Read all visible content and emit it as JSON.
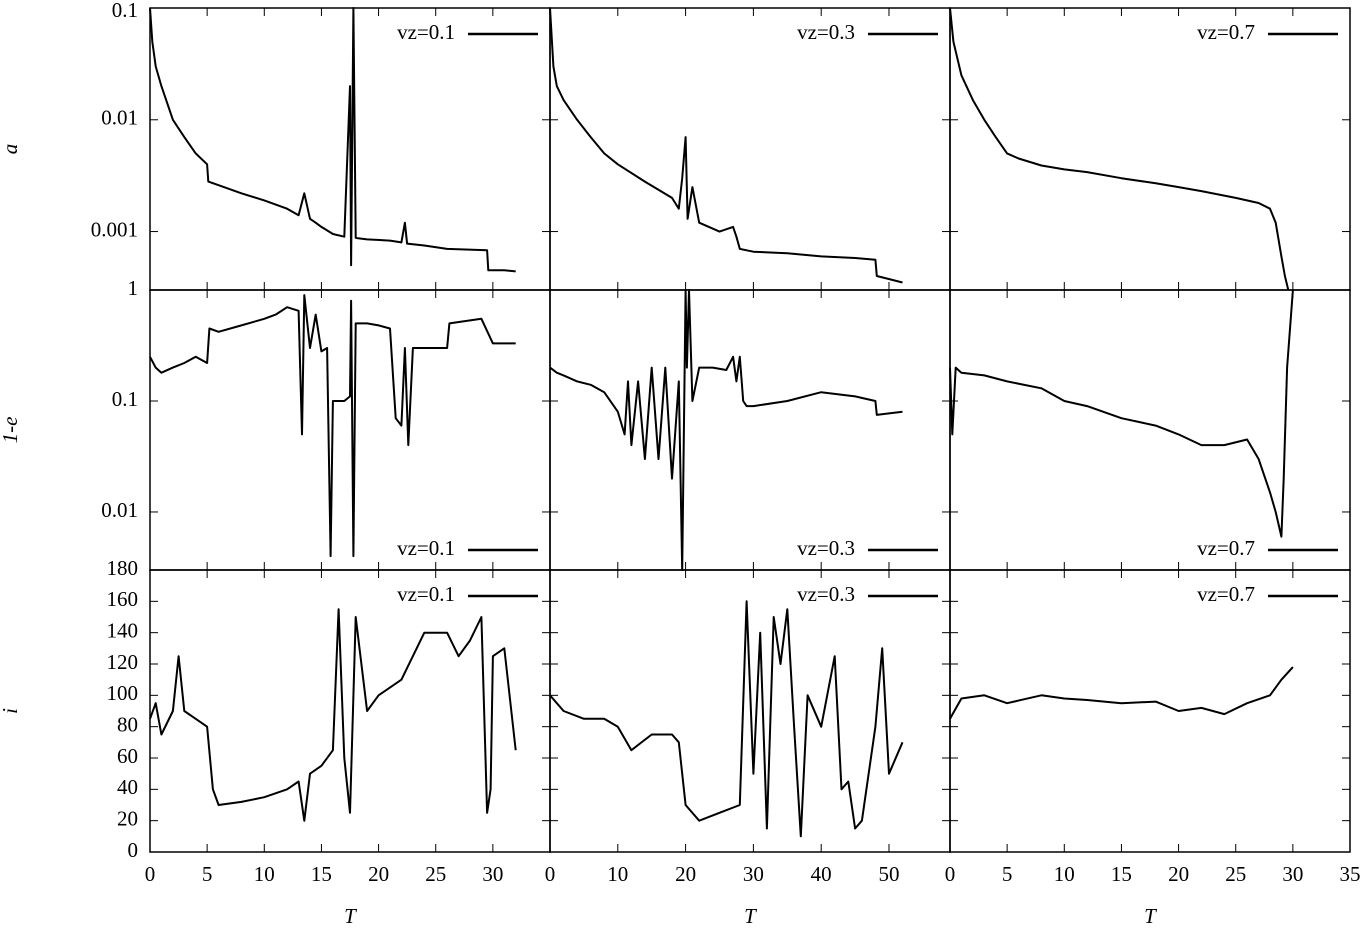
{
  "chart_data": [
    {
      "type": "line",
      "ylabel": "a",
      "log_y": true,
      "legend": "upper right",
      "xlim": [
        0,
        35
      ],
      "ylim": [
        0.0003,
        0.1
      ],
      "yticks": [
        0.001,
        0.01,
        0.1
      ],
      "x": [
        0,
        0.2,
        0.5,
        1,
        2,
        3,
        4,
        5,
        5.1,
        6,
        8,
        10,
        12,
        13,
        13.5,
        14,
        14.5,
        15,
        16,
        17,
        17.5,
        17.6,
        17.8,
        18,
        18.2,
        19,
        21,
        22,
        22.3,
        22.5,
        24,
        26,
        29.5,
        29.6,
        31,
        32
      ],
      "series": [
        {
          "name": "vz=0.1",
          "color": "#000000",
          "values": [
            0.1,
            0.05,
            0.03,
            0.02,
            0.01,
            0.007,
            0.005,
            0.004,
            0.0028,
            0.0026,
            0.0022,
            0.0019,
            0.0016,
            0.0014,
            0.0022,
            0.0013,
            0.0012,
            0.0011,
            0.00095,
            0.0009,
            0.02,
            0.0005,
            0.1,
            0.00088,
            0.00087,
            0.00085,
            0.00083,
            0.0008,
            0.0012,
            0.00078,
            0.00075,
            0.0007,
            0.00068,
            0.00045,
            0.00045,
            0.00044
          ]
        }
      ]
    },
    {
      "type": "line",
      "log_y": true,
      "legend": "upper right",
      "xlim": [
        0,
        59
      ],
      "ylim": [
        0.0003,
        0.1
      ],
      "x": [
        0,
        0.5,
        1,
        2,
        4,
        6,
        8,
        10,
        14,
        18,
        19,
        19.5,
        20,
        20.3,
        21,
        22,
        25,
        27,
        27.5,
        28,
        29,
        30,
        35,
        40,
        45,
        48,
        48.2,
        52
      ],
      "series": [
        {
          "name": "vz=0.3",
          "color": "#000000",
          "values": [
            0.1,
            0.03,
            0.02,
            0.015,
            0.01,
            0.007,
            0.005,
            0.004,
            0.0028,
            0.002,
            0.0016,
            0.003,
            0.007,
            0.0013,
            0.0025,
            0.0012,
            0.001,
            0.0011,
            0.0009,
            0.0007,
            0.00068,
            0.00066,
            0.00064,
            0.0006,
            0.00058,
            0.00056,
            0.0004,
            0.00035
          ]
        }
      ]
    },
    {
      "type": "line",
      "log_y": true,
      "legend": "upper right",
      "xlim": [
        0,
        35
      ],
      "ylim": [
        0.0003,
        0.1
      ],
      "x": [
        0,
        0.3,
        1,
        2,
        3,
        4,
        5,
        6,
        8,
        10,
        12,
        15,
        18,
        20,
        22,
        25,
        27,
        28,
        28.5,
        29,
        29.3,
        29.6
      ],
      "series": [
        {
          "name": "vz=0.7",
          "color": "#000000",
          "values": [
            0.1,
            0.05,
            0.025,
            0.015,
            0.01,
            0.007,
            0.005,
            0.0045,
            0.0039,
            0.0036,
            0.0034,
            0.003,
            0.0027,
            0.0025,
            0.0023,
            0.002,
            0.0018,
            0.0016,
            0.0012,
            0.0006,
            0.0004,
            0.0003
          ]
        }
      ]
    },
    {
      "type": "line",
      "ylabel": "1-e",
      "log_y": true,
      "legend": "lower right",
      "xlim": [
        0,
        35
      ],
      "ylim": [
        0.003,
        1
      ],
      "yticks": [
        0.01,
        0.1,
        1
      ],
      "x": [
        0,
        0.5,
        1,
        2,
        3,
        4,
        5,
        5.2,
        6,
        8,
        10,
        11,
        12,
        13,
        13.3,
        13.5,
        14,
        14.5,
        15,
        15.5,
        15.8,
        16,
        17,
        17.5,
        17.6,
        17.8,
        18,
        19,
        20,
        21,
        21.5,
        22,
        22.3,
        22.6,
        23,
        24,
        26,
        26.2,
        29,
        30,
        32
      ],
      "series": [
        {
          "name": "vz=0.1",
          "color": "#000000",
          "values": [
            0.25,
            0.2,
            0.18,
            0.2,
            0.22,
            0.25,
            0.22,
            0.45,
            0.42,
            0.48,
            0.55,
            0.6,
            0.7,
            0.65,
            0.05,
            0.9,
            0.3,
            0.6,
            0.28,
            0.3,
            0.004,
            0.1,
            0.1,
            0.11,
            0.8,
            0.004,
            0.5,
            0.5,
            0.48,
            0.45,
            0.07,
            0.06,
            0.3,
            0.04,
            0.3,
            0.3,
            0.3,
            0.5,
            0.55,
            0.33,
            0.33
          ]
        }
      ]
    },
    {
      "type": "line",
      "log_y": true,
      "legend": "lower right",
      "xlim": [
        0,
        59
      ],
      "ylim": [
        0.003,
        1
      ],
      "x": [
        0,
        1,
        2,
        4,
        6,
        8,
        10,
        11,
        11.5,
        12,
        13,
        14,
        15,
        16,
        17,
        18,
        19,
        19.5,
        20,
        20.2,
        20.5,
        21,
        22,
        24,
        26,
        27,
        27.5,
        28,
        28.5,
        29,
        30,
        35,
        40,
        45,
        48,
        48.2,
        52
      ],
      "series": [
        {
          "name": "vz=0.3",
          "color": "#000000",
          "values": [
            0.2,
            0.18,
            0.17,
            0.15,
            0.14,
            0.12,
            0.08,
            0.05,
            0.15,
            0.04,
            0.15,
            0.03,
            0.2,
            0.03,
            0.2,
            0.02,
            0.15,
            0.003,
            1,
            0.2,
            1,
            0.1,
            0.2,
            0.2,
            0.19,
            0.25,
            0.15,
            0.25,
            0.1,
            0.09,
            0.09,
            0.1,
            0.12,
            0.11,
            0.1,
            0.075,
            0.08
          ]
        }
      ]
    },
    {
      "type": "line",
      "log_y": true,
      "legend": "lower right",
      "xlim": [
        0,
        35
      ],
      "ylim": [
        0.003,
        1
      ],
      "x": [
        0,
        0.2,
        0.5,
        1,
        3,
        5,
        8,
        10,
        12,
        15,
        18,
        20,
        22,
        24,
        26,
        27,
        28,
        28.5,
        29,
        29.2,
        29.5,
        30
      ],
      "series": [
        {
          "name": "vz=0.7",
          "color": "#000000",
          "values": [
            0.2,
            0.05,
            0.2,
            0.18,
            0.17,
            0.15,
            0.13,
            0.1,
            0.09,
            0.07,
            0.06,
            0.05,
            0.04,
            0.04,
            0.045,
            0.03,
            0.015,
            0.01,
            0.006,
            0.02,
            0.2,
            1
          ]
        }
      ]
    },
    {
      "type": "line",
      "ylabel": "i",
      "xlabel": "T",
      "legend": "upper right",
      "xlim": [
        0,
        35
      ],
      "ylim": [
        0,
        180
      ],
      "yticks": [
        0,
        20,
        40,
        60,
        80,
        100,
        120,
        140,
        160,
        180
      ],
      "xticks": [
        0,
        5,
        10,
        15,
        20,
        25,
        30
      ],
      "x": [
        0,
        0.5,
        1,
        2,
        2.5,
        3,
        4,
        5,
        5.5,
        6,
        8,
        10,
        12,
        13,
        13.5,
        14,
        15,
        16,
        16.5,
        17,
        17.5,
        18,
        19,
        20,
        22,
        24,
        26,
        27,
        28,
        29,
        29.5,
        29.8,
        30,
        31,
        32
      ],
      "series": [
        {
          "name": "vz=0.1",
          "color": "#000000",
          "values": [
            85,
            95,
            75,
            90,
            125,
            90,
            85,
            80,
            40,
            30,
            32,
            35,
            40,
            45,
            20,
            50,
            55,
            65,
            155,
            60,
            25,
            150,
            90,
            100,
            110,
            140,
            140,
            125,
            135,
            150,
            25,
            40,
            125,
            130,
            65
          ]
        }
      ]
    },
    {
      "type": "line",
      "xlabel": "T",
      "legend": "upper right",
      "xlim": [
        0,
        59
      ],
      "ylim": [
        0,
        180
      ],
      "xticks": [
        0,
        10,
        20,
        30,
        40,
        50
      ],
      "x": [
        0,
        2,
        5,
        8,
        10,
        12,
        15,
        18,
        19,
        20,
        22,
        25,
        28,
        29,
        30,
        31,
        32,
        33,
        34,
        35,
        36,
        37,
        38,
        40,
        42,
        43,
        44,
        45,
        46,
        48,
        49,
        50,
        52
      ],
      "series": [
        {
          "name": "vz=0.3",
          "color": "#000000",
          "values": [
            100,
            90,
            85,
            85,
            80,
            65,
            75,
            75,
            70,
            30,
            20,
            25,
            30,
            160,
            50,
            140,
            15,
            150,
            120,
            155,
            80,
            10,
            100,
            80,
            125,
            40,
            45,
            15,
            20,
            80,
            130,
            50,
            70
          ]
        }
      ]
    },
    {
      "type": "line",
      "xlabel": "T",
      "legend": "upper right",
      "xlim": [
        0,
        35
      ],
      "ylim": [
        0,
        180
      ],
      "xticks": [
        0,
        5,
        10,
        15,
        20,
        25,
        30,
        35
      ],
      "x": [
        0,
        1,
        3,
        5,
        8,
        10,
        12,
        15,
        18,
        20,
        22,
        24,
        26,
        28,
        29,
        30
      ],
      "series": [
        {
          "name": "vz=0.7",
          "color": "#000000",
          "values": [
            85,
            98,
            100,
            95,
            100,
            98,
            97,
            95,
            96,
            90,
            92,
            88,
            95,
            100,
            110,
            118
          ]
        }
      ]
    }
  ]
}
